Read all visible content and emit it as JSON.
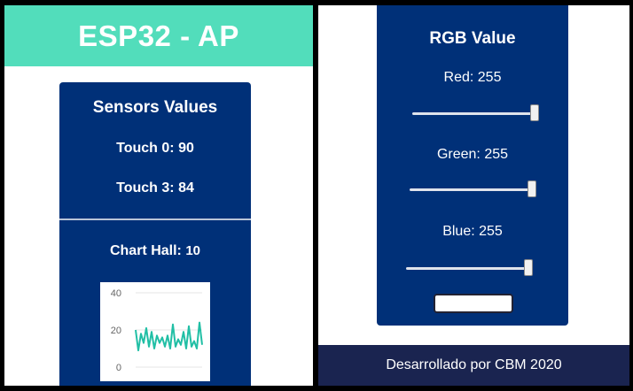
{
  "app": {
    "title": "ESP32 - AP"
  },
  "sensors": {
    "title": "Sensors Values",
    "touch0": {
      "label": "Touch 0:",
      "value": "90"
    },
    "touch3": {
      "label": "Touch 3:",
      "value": "84"
    },
    "hall": {
      "label": "Chart Hall:",
      "value": "10"
    }
  },
  "chart_data": {
    "type": "line",
    "title": "",
    "xlabel": "",
    "ylabel": "",
    "ylim": [
      0,
      40
    ],
    "yticks": [
      "0",
      "20",
      "40"
    ],
    "grid": true,
    "color": "#21bfa5",
    "series": [
      {
        "values": [
          20,
          9,
          18,
          13,
          21,
          11,
          19,
          10,
          17,
          13,
          16,
          11,
          17,
          10,
          23,
          11,
          15,
          12,
          19,
          10,
          22,
          11,
          14,
          10,
          24,
          12
        ]
      }
    ]
  },
  "rgb": {
    "title": "RGB Value",
    "sliders": [
      {
        "label": "Red:",
        "value": "255",
        "level": 1.0
      },
      {
        "label": "Green:",
        "value": "255",
        "level": 1.0
      },
      {
        "label": "Blue:",
        "value": "255",
        "level": 1.0
      }
    ],
    "button_label": ""
  },
  "footer": {
    "text": "Desarrollado por CBM 2020"
  },
  "colors": {
    "header_bg": "#52ddbb",
    "card_bg": "#003078",
    "footer_bg": "#1a2450",
    "chart_line": "#21bfa5"
  }
}
